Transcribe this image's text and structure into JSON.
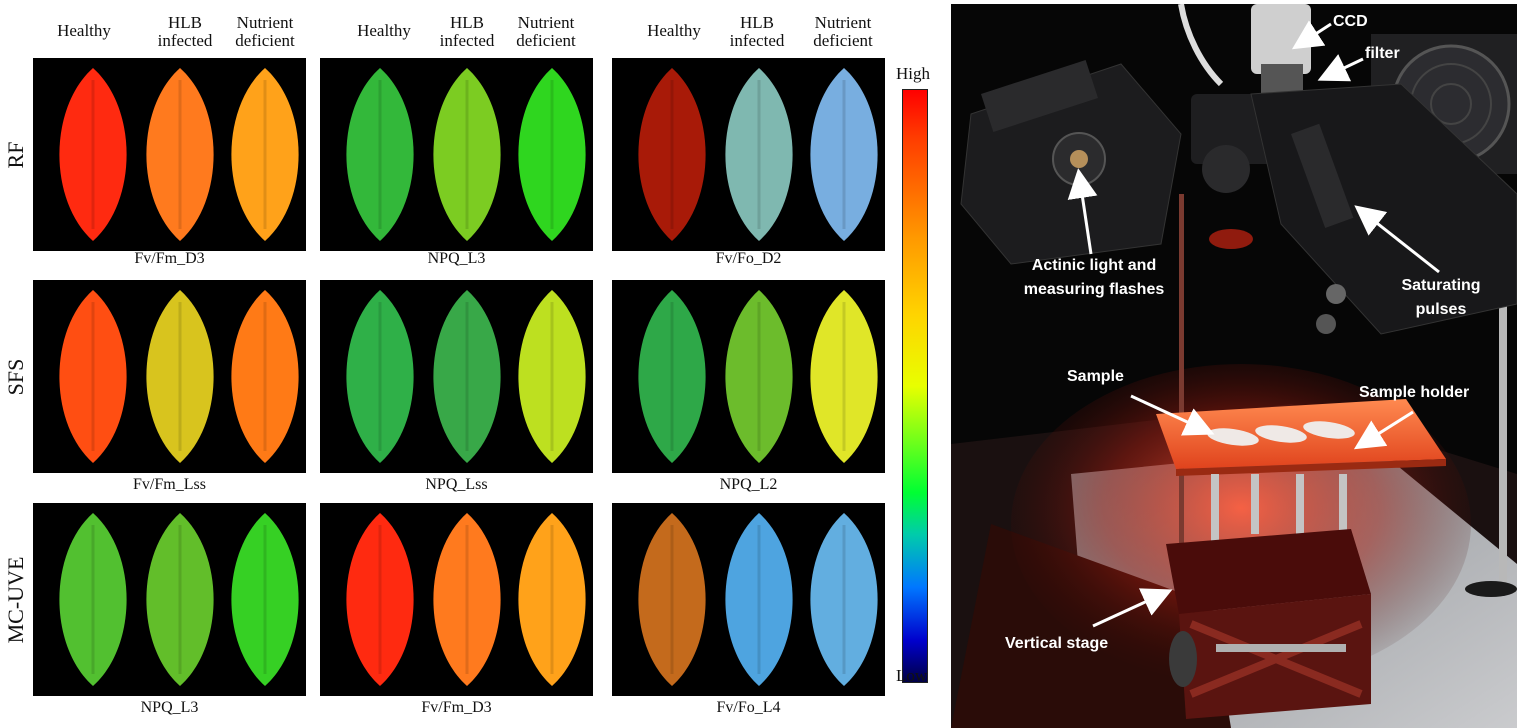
{
  "left_figure": {
    "column_headers": [
      {
        "line1": "Healthy",
        "line2": ""
      },
      {
        "line1": "HLB",
        "line2": "infected"
      },
      {
        "line1": "Nutrient",
        "line2": "deficient"
      },
      {
        "line1": "Healthy",
        "line2": ""
      },
      {
        "line1": "HLB",
        "line2": "infected"
      },
      {
        "line1": "Nutrient",
        "line2": "deficient"
      },
      {
        "line1": "Healthy",
        "line2": ""
      },
      {
        "line1": "HLB",
        "line2": "infected"
      },
      {
        "line1": "Nutrient",
        "line2": "deficient"
      }
    ],
    "row_labels": [
      "RF",
      "SFS",
      "MC-UVE"
    ],
    "panel_captions": [
      [
        "Fv/Fm_D3",
        "NPQ_L3",
        "Fv/Fo_D2"
      ],
      [
        "Fv/Fm_Lss",
        "NPQ_Lss",
        "NPQ_L2"
      ],
      [
        "NPQ_L3",
        "Fv/Fm_D3",
        "Fv/Fo_L4"
      ]
    ],
    "leaf_colors": [
      [
        [
          "#ff2a10",
          "#ff7a1e",
          "#ffa21a"
        ],
        [
          "#33b83a",
          "#7ccc22",
          "#2fd61f"
        ],
        [
          "#a81a08",
          "#7fb8b0",
          "#78aee0"
        ]
      ],
      [
        [
          "#ff4e12",
          "#d8c41e",
          "#ff7a16"
        ],
        [
          "#2fb048",
          "#38a848",
          "#bde020"
        ],
        [
          "#2ea848",
          "#6cbc2c",
          "#e0e628"
        ]
      ],
      [
        [
          "#52c030",
          "#62be2a",
          "#36d024"
        ],
        [
          "#ff2a10",
          "#ff7a1e",
          "#ffa21a"
        ],
        [
          "#c46a1c",
          "#4ea4e0",
          "#62aee0"
        ]
      ]
    ],
    "colorbar": {
      "high_label": "High",
      "low_label": "Low"
    }
  },
  "photo": {
    "annotations": {
      "ccd": "CCD",
      "filter": "filter",
      "actinic_line1": "Actinic light and",
      "actinic_line2": "measuring flashes",
      "saturating_line1": "Saturating",
      "saturating_line2": "pulses",
      "sample": "Sample",
      "sample_holder": "Sample holder",
      "vertical_stage": "Vertical stage"
    }
  }
}
